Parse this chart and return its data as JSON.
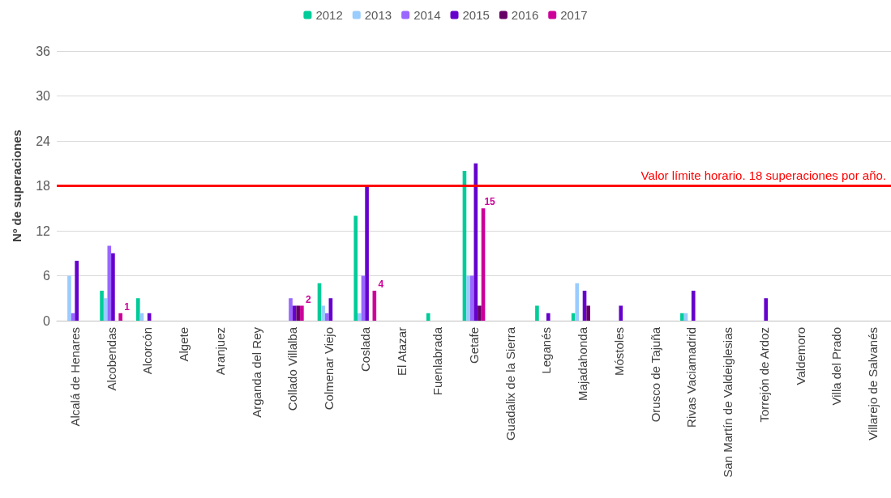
{
  "chart_data": {
    "type": "bar",
    "ylabel": "Nº de superaciones",
    "categories": [
      "Alcalá de Henares",
      "Alcobendas",
      "Alcorcón",
      "Algete",
      "Aranjuez",
      "Arganda del Rey",
      "Collado Villalba",
      "Colmenar Viejo",
      "Coslada",
      "El Atazar",
      "Fuenlabrada",
      "Getafe",
      "Guadalix de la Sierra",
      "Leganés",
      "Majadahonda",
      "Móstoles",
      "Orusco de Tajuña",
      "Rivas Vaciamadrid",
      "San Martín de Valdeiglesias",
      "Torrejón de Ardoz",
      "Valdemoro",
      "Villa del Prado",
      "Villarejo de Salvanés"
    ],
    "series": [
      {
        "name": "2012",
        "color": "#00cc99",
        "values": [
          null,
          4,
          3,
          null,
          null,
          null,
          null,
          5,
          14,
          null,
          1,
          20,
          null,
          2,
          1,
          null,
          null,
          1,
          null,
          null,
          null,
          null,
          null
        ]
      },
      {
        "name": "2013",
        "color": "#99ccff",
        "values": [
          6,
          3,
          1,
          null,
          null,
          null,
          null,
          2,
          1,
          null,
          null,
          6,
          null,
          null,
          5,
          null,
          null,
          1,
          null,
          null,
          null,
          null,
          null
        ]
      },
      {
        "name": "2014",
        "color": "#9966ff",
        "values": [
          1,
          10,
          null,
          null,
          null,
          null,
          3,
          1,
          6,
          null,
          null,
          6,
          null,
          null,
          null,
          null,
          null,
          null,
          null,
          null,
          null,
          null,
          null
        ]
      },
      {
        "name": "2015",
        "color": "#6600cc",
        "values": [
          8,
          9,
          1,
          null,
          null,
          null,
          2,
          3,
          18,
          null,
          null,
          21,
          null,
          1,
          4,
          2,
          null,
          4,
          null,
          3,
          null,
          null,
          null
        ]
      },
      {
        "name": "2016",
        "color": "#660066",
        "values": [
          null,
          null,
          null,
          null,
          null,
          null,
          2,
          null,
          null,
          null,
          null,
          2,
          null,
          null,
          2,
          null,
          null,
          null,
          null,
          null,
          null,
          null,
          null
        ]
      },
      {
        "name": "2017",
        "color": "#cc0099",
        "values": [
          null,
          1,
          null,
          null,
          null,
          null,
          2,
          null,
          4,
          null,
          null,
          15,
          null,
          null,
          null,
          null,
          null,
          null,
          null,
          null,
          null,
          null,
          null
        ],
        "value_labels": [
          null,
          "1",
          null,
          null,
          null,
          null,
          "2",
          null,
          "4",
          null,
          null,
          "15",
          null,
          null,
          null,
          null,
          null,
          null,
          null,
          null,
          null,
          null,
          null
        ]
      }
    ],
    "ylim": [
      0,
      36
    ],
    "yticks": [
      0,
      6,
      12,
      18,
      24,
      30,
      36
    ],
    "grid": "y",
    "legend": "top",
    "ref_lines": [
      {
        "axis": "y",
        "value": 18,
        "label": "Valor límite horario. 18 superaciones por año.",
        "color": "#ff0000"
      }
    ]
  }
}
